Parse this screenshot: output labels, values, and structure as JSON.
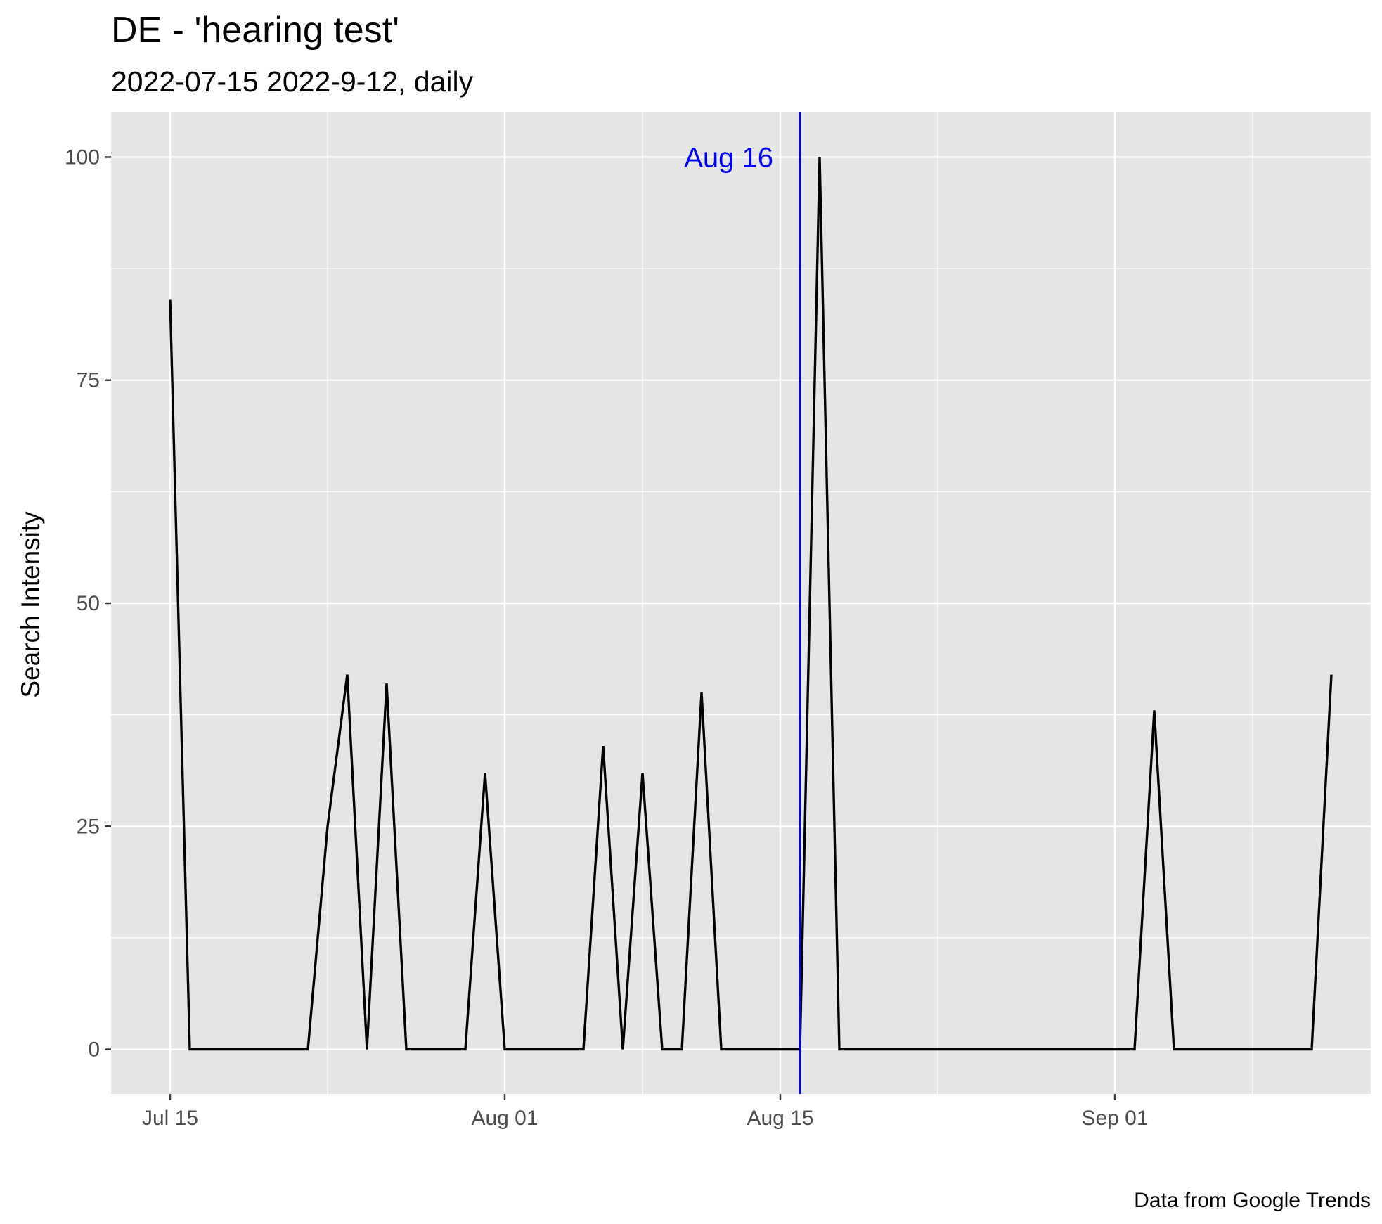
{
  "chart_data": {
    "type": "line",
    "title": "DE  - 'hearing test'",
    "subtitle": "2022-07-15 2022-9-12, daily",
    "xlabel": "",
    "ylabel": "Search Intensity",
    "caption": "Data from Google Trends",
    "xlim": [
      "2022-07-12",
      "2022-09-14"
    ],
    "ylim": [
      -5,
      105
    ],
    "x_ticks": [
      {
        "date": "2022-07-15",
        "label": "Jul 15"
      },
      {
        "date": "2022-08-01",
        "label": "Aug 01"
      },
      {
        "date": "2022-08-15",
        "label": "Aug 15"
      },
      {
        "date": "2022-09-01",
        "label": "Sep 01"
      }
    ],
    "x_minor_breaks": [
      "2022-07-23",
      "2022-08-08",
      "2022-08-23",
      "2022-09-08"
    ],
    "y_ticks": [
      0,
      25,
      50,
      75,
      100
    ],
    "y_minor_breaks": [
      12.5,
      37.5,
      62.5,
      87.5
    ],
    "grid": true,
    "colors": {
      "panel_background": "#e5e5e5",
      "grid": "#ffffff",
      "line": "#000000",
      "annotation": "#0000ff"
    },
    "series": [
      {
        "x": [
          "2022-07-15",
          "2022-07-16",
          "2022-07-17",
          "2022-07-18",
          "2022-07-19",
          "2022-07-20",
          "2022-07-21",
          "2022-07-22",
          "2022-07-23",
          "2022-07-24",
          "2022-07-25",
          "2022-07-26",
          "2022-07-27",
          "2022-07-28",
          "2022-07-29",
          "2022-07-30",
          "2022-07-31",
          "2022-08-01",
          "2022-08-02",
          "2022-08-03",
          "2022-08-04",
          "2022-08-05",
          "2022-08-06",
          "2022-08-07",
          "2022-08-08",
          "2022-08-09",
          "2022-08-10",
          "2022-08-11",
          "2022-08-12",
          "2022-08-13",
          "2022-08-14",
          "2022-08-15",
          "2022-08-16",
          "2022-08-17",
          "2022-08-18",
          "2022-08-19",
          "2022-08-20",
          "2022-08-21",
          "2022-08-22",
          "2022-08-23",
          "2022-08-24",
          "2022-08-25",
          "2022-08-26",
          "2022-08-27",
          "2022-08-28",
          "2022-08-29",
          "2022-08-30",
          "2022-08-31",
          "2022-09-01",
          "2022-09-02",
          "2022-09-03",
          "2022-09-04",
          "2022-09-05",
          "2022-09-06",
          "2022-09-07",
          "2022-09-08",
          "2022-09-09",
          "2022-09-10",
          "2022-09-11",
          "2022-09-12"
        ],
        "values": [
          84,
          0,
          0,
          0,
          0,
          0,
          0,
          0,
          25,
          42,
          0,
          41,
          0,
          0,
          0,
          0,
          31,
          0,
          0,
          0,
          0,
          0,
          34,
          0,
          31,
          0,
          0,
          40,
          0,
          0,
          0,
          0,
          0,
          100,
          0,
          0,
          0,
          0,
          0,
          0,
          0,
          0,
          0,
          0,
          0,
          0,
          0,
          0,
          0,
          0,
          38,
          0,
          0,
          0,
          0,
          0,
          0,
          0,
          0,
          42
        ]
      }
    ],
    "annotations": [
      {
        "type": "vline",
        "x": "2022-08-16",
        "label": "Aug 16",
        "label_y": 100
      }
    ]
  }
}
